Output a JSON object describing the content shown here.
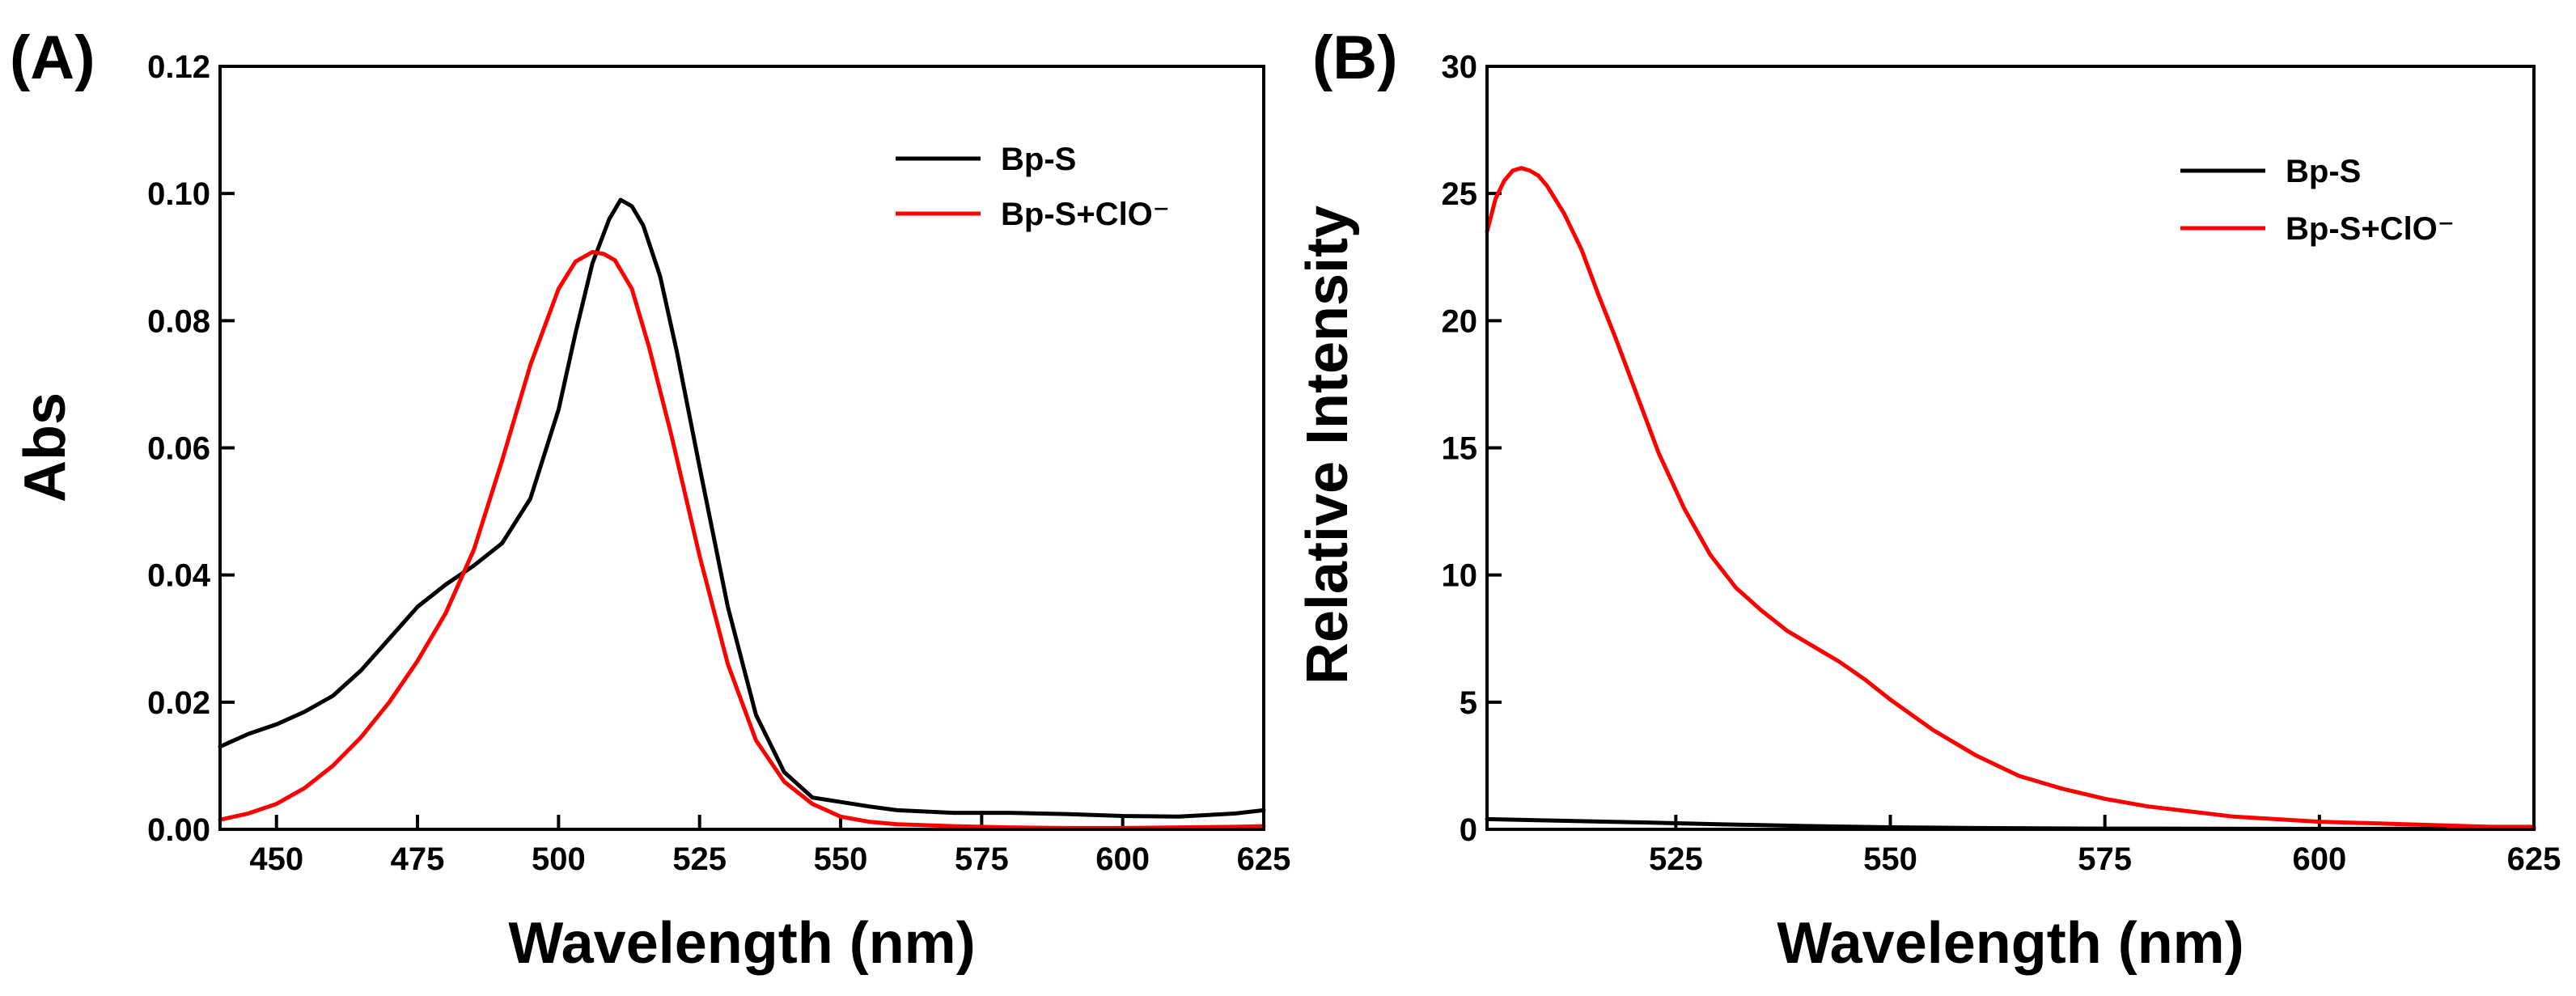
{
  "chart_data": [
    {
      "type": "line",
      "panel_label": "(A)",
      "xlabel": "Wavelength (nm)",
      "ylabel": "Abs",
      "xlim": [
        440,
        625
      ],
      "ylim": [
        0,
        0.12
      ],
      "xticks": [
        450,
        475,
        500,
        525,
        550,
        575,
        600,
        625
      ],
      "yticks": [
        0.0,
        0.02,
        0.04,
        0.06,
        0.08,
        0.1,
        0.12
      ],
      "y_decimals": 2,
      "grid": false,
      "legend_position": "top-right",
      "series": [
        {
          "name": "Bp-S",
          "color": "#000000",
          "x": [
            440,
            445,
            450,
            455,
            460,
            465,
            470,
            475,
            480,
            485,
            490,
            495,
            500,
            503,
            506,
            509,
            511,
            513,
            515,
            518,
            521,
            525,
            530,
            535,
            540,
            545,
            550,
            555,
            560,
            570,
            580,
            590,
            600,
            610,
            620,
            625
          ],
          "y": [
            0.013,
            0.015,
            0.0165,
            0.0185,
            0.021,
            0.025,
            0.03,
            0.035,
            0.0385,
            0.0415,
            0.045,
            0.052,
            0.066,
            0.078,
            0.089,
            0.096,
            0.099,
            0.098,
            0.095,
            0.087,
            0.075,
            0.057,
            0.035,
            0.018,
            0.009,
            0.005,
            0.0043,
            0.0036,
            0.003,
            0.0026,
            0.0026,
            0.0024,
            0.0021,
            0.002,
            0.0025,
            0.003
          ]
        },
        {
          "name": "Bp-S+ClO⁻",
          "color": "#ff0000",
          "x": [
            440,
            445,
            450,
            455,
            460,
            465,
            470,
            475,
            480,
            485,
            490,
            495,
            500,
            503,
            506,
            508,
            510,
            513,
            516,
            520,
            525,
            530,
            535,
            540,
            545,
            550,
            555,
            560,
            570,
            580,
            590,
            600,
            610,
            620,
            625
          ],
          "y": [
            0.0015,
            0.0025,
            0.004,
            0.0065,
            0.01,
            0.0145,
            0.02,
            0.0265,
            0.034,
            0.044,
            0.058,
            0.073,
            0.085,
            0.0893,
            0.0908,
            0.0905,
            0.0895,
            0.085,
            0.076,
            0.062,
            0.043,
            0.026,
            0.014,
            0.0075,
            0.004,
            0.002,
            0.0012,
            0.0008,
            0.0005,
            0.0003,
            0.0002,
            0.0002,
            0.0003,
            0.0004,
            0.0005
          ]
        }
      ]
    },
    {
      "type": "line",
      "panel_label": "(B)",
      "xlabel": "Wavelength (nm)",
      "ylabel": "Relative Intensity",
      "xlim": [
        503,
        625
      ],
      "ylim": [
        0,
        30
      ],
      "xticks": [
        525,
        550,
        575,
        600,
        625
      ],
      "yticks": [
        0,
        5,
        10,
        15,
        20,
        25,
        30
      ],
      "y_decimals": 0,
      "grid": false,
      "legend_position": "top-right",
      "series": [
        {
          "name": "Bp-S",
          "color": "#000000",
          "x": [
            503,
            510,
            520,
            530,
            540,
            550,
            560,
            575,
            600,
            625
          ],
          "y": [
            0.4,
            0.35,
            0.28,
            0.2,
            0.13,
            0.08,
            0.05,
            0.03,
            0.02,
            0.02
          ]
        },
        {
          "name": "Bp-S+ClO⁻",
          "color": "#ff0000",
          "x": [
            503,
            504,
            505,
            506,
            507,
            508,
            509,
            510,
            512,
            514,
            516,
            518,
            520,
            523,
            526,
            529,
            532,
            535,
            538,
            541,
            544,
            547,
            550,
            555,
            560,
            565,
            570,
            575,
            580,
            590,
            600,
            610,
            620,
            625
          ],
          "y": [
            23.5,
            24.8,
            25.5,
            25.9,
            26.0,
            25.9,
            25.7,
            25.3,
            24.2,
            22.8,
            21.0,
            19.3,
            17.5,
            14.8,
            12.6,
            10.8,
            9.5,
            8.6,
            7.8,
            7.2,
            6.6,
            5.9,
            5.1,
            3.9,
            2.9,
            2.1,
            1.6,
            1.2,
            0.9,
            0.5,
            0.3,
            0.2,
            0.1,
            0.1
          ]
        }
      ]
    }
  ]
}
